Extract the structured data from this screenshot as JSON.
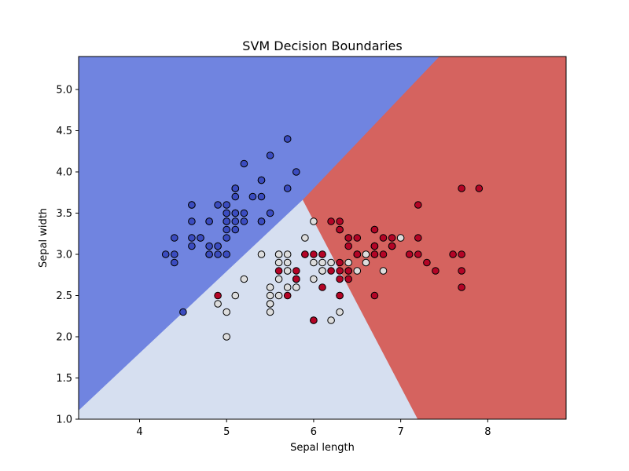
{
  "chart_data": {
    "type": "scatter",
    "title": "SVM Decision Boundaries",
    "xlabel": "Sepal length",
    "ylabel": "Sepal width",
    "xlim": [
      3.3,
      8.9
    ],
    "ylim": [
      1.0,
      5.4
    ],
    "xticks": [
      4,
      5,
      6,
      7,
      8
    ],
    "yticks": [
      1.0,
      1.5,
      2.0,
      2.5,
      3.0,
      3.5,
      4.0,
      4.5,
      5.0
    ],
    "grid": false,
    "regions": [
      {
        "class": 0,
        "color": "#7084e0",
        "polygon": [
          [
            3.3,
            5.4
          ],
          [
            7.45,
            5.4
          ],
          [
            5.88,
            3.66
          ],
          [
            3.3,
            1.1
          ]
        ]
      },
      {
        "class": 1,
        "color": "#d6dff0",
        "polygon": [
          [
            3.3,
            1.0
          ],
          [
            3.3,
            1.1
          ],
          [
            5.88,
            3.66
          ],
          [
            7.2,
            1.0
          ]
        ]
      },
      {
        "class": 2,
        "color": "#d5635f",
        "polygon": [
          [
            7.45,
            5.4
          ],
          [
            8.9,
            5.4
          ],
          [
            8.9,
            1.0
          ],
          [
            7.2,
            1.0
          ],
          [
            5.88,
            3.66
          ]
        ]
      }
    ],
    "series": [
      {
        "color": "#3b4cc0",
        "points": [
          [
            5.1,
            3.5
          ],
          [
            4.9,
            3.0
          ],
          [
            4.7,
            3.2
          ],
          [
            4.6,
            3.1
          ],
          [
            5.0,
            3.6
          ],
          [
            5.4,
            3.9
          ],
          [
            4.6,
            3.4
          ],
          [
            5.0,
            3.4
          ],
          [
            4.4,
            2.9
          ],
          [
            4.9,
            3.1
          ],
          [
            5.4,
            3.7
          ],
          [
            4.8,
            3.4
          ],
          [
            4.8,
            3.0
          ],
          [
            4.3,
            3.0
          ],
          [
            5.8,
            4.0
          ],
          [
            5.7,
            4.4
          ],
          [
            5.4,
            3.9
          ],
          [
            5.1,
            3.5
          ],
          [
            5.7,
            3.8
          ],
          [
            5.1,
            3.8
          ],
          [
            5.4,
            3.4
          ],
          [
            5.1,
            3.7
          ],
          [
            4.6,
            3.6
          ],
          [
            5.1,
            3.3
          ],
          [
            4.8,
            3.4
          ],
          [
            5.0,
            3.0
          ],
          [
            5.0,
            3.4
          ],
          [
            5.2,
            3.5
          ],
          [
            5.2,
            3.4
          ],
          [
            4.7,
            3.2
          ],
          [
            4.8,
            3.1
          ],
          [
            5.4,
            3.4
          ],
          [
            5.2,
            4.1
          ],
          [
            5.5,
            4.2
          ],
          [
            4.9,
            3.1
          ],
          [
            5.0,
            3.2
          ],
          [
            5.5,
            3.5
          ],
          [
            4.9,
            3.6
          ],
          [
            4.4,
            3.0
          ],
          [
            5.1,
            3.4
          ],
          [
            5.0,
            3.5
          ],
          [
            4.5,
            2.3
          ],
          [
            4.4,
            3.2
          ],
          [
            5.0,
            3.5
          ],
          [
            5.1,
            3.8
          ],
          [
            4.8,
            3.0
          ],
          [
            5.1,
            3.8
          ],
          [
            4.6,
            3.2
          ],
          [
            5.3,
            3.7
          ],
          [
            5.0,
            3.3
          ],
          [
            4.6,
            3.6
          ]
        ]
      },
      {
        "color": "#dddddd",
        "points": [
          [
            7.0,
            3.2
          ],
          [
            6.4,
            3.2
          ],
          [
            6.9,
            3.1
          ],
          [
            5.5,
            2.3
          ],
          [
            6.5,
            2.8
          ],
          [
            5.7,
            2.8
          ],
          [
            6.3,
            3.3
          ],
          [
            4.9,
            2.4
          ],
          [
            6.6,
            2.9
          ],
          [
            5.2,
            2.7
          ],
          [
            5.0,
            2.0
          ],
          [
            5.9,
            3.0
          ],
          [
            6.0,
            2.2
          ],
          [
            6.1,
            2.9
          ],
          [
            5.6,
            2.9
          ],
          [
            6.7,
            3.1
          ],
          [
            5.6,
            3.0
          ],
          [
            5.8,
            2.7
          ],
          [
            6.2,
            2.2
          ],
          [
            5.6,
            2.5
          ],
          [
            5.9,
            3.2
          ],
          [
            6.1,
            2.8
          ],
          [
            6.3,
            2.5
          ],
          [
            6.1,
            2.8
          ],
          [
            6.4,
            2.9
          ],
          [
            6.6,
            3.0
          ],
          [
            6.8,
            2.8
          ],
          [
            6.7,
            3.0
          ],
          [
            6.0,
            2.9
          ],
          [
            5.7,
            2.6
          ],
          [
            5.5,
            2.4
          ],
          [
            5.5,
            2.4
          ],
          [
            5.8,
            2.7
          ],
          [
            6.0,
            2.7
          ],
          [
            5.4,
            3.0
          ],
          [
            6.0,
            3.4
          ],
          [
            6.7,
            3.1
          ],
          [
            6.3,
            2.3
          ],
          [
            5.6,
            3.0
          ],
          [
            5.5,
            2.5
          ],
          [
            5.5,
            2.6
          ],
          [
            6.1,
            3.0
          ],
          [
            5.8,
            2.6
          ],
          [
            5.0,
            2.3
          ],
          [
            5.6,
            2.7
          ],
          [
            5.7,
            3.0
          ],
          [
            5.7,
            2.9
          ],
          [
            6.2,
            2.9
          ],
          [
            5.1,
            2.5
          ],
          [
            5.7,
            2.8
          ]
        ]
      },
      {
        "color": "#b40426",
        "points": [
          [
            6.3,
            3.3
          ],
          [
            5.8,
            2.7
          ],
          [
            7.1,
            3.0
          ],
          [
            6.3,
            2.9
          ],
          [
            6.5,
            3.0
          ],
          [
            7.6,
            3.0
          ],
          [
            4.9,
            2.5
          ],
          [
            7.3,
            2.9
          ],
          [
            6.7,
            2.5
          ],
          [
            7.2,
            3.6
          ],
          [
            6.5,
            3.2
          ],
          [
            6.4,
            2.7
          ],
          [
            6.8,
            3.0
          ],
          [
            5.7,
            2.5
          ],
          [
            5.8,
            2.8
          ],
          [
            6.4,
            3.2
          ],
          [
            6.5,
            3.0
          ],
          [
            7.7,
            3.8
          ],
          [
            7.7,
            2.6
          ],
          [
            6.0,
            2.2
          ],
          [
            6.9,
            3.2
          ],
          [
            5.6,
            2.8
          ],
          [
            7.7,
            2.8
          ],
          [
            6.3,
            2.7
          ],
          [
            6.7,
            3.3
          ],
          [
            7.2,
            3.2
          ],
          [
            6.2,
            2.8
          ],
          [
            6.1,
            3.0
          ],
          [
            6.4,
            2.8
          ],
          [
            7.2,
            3.0
          ],
          [
            7.4,
            2.8
          ],
          [
            7.9,
            3.8
          ],
          [
            6.4,
            2.8
          ],
          [
            6.3,
            2.8
          ],
          [
            6.1,
            2.6
          ],
          [
            7.7,
            3.0
          ],
          [
            6.3,
            3.4
          ],
          [
            6.4,
            3.1
          ],
          [
            6.0,
            3.0
          ],
          [
            6.9,
            3.1
          ],
          [
            6.7,
            3.1
          ],
          [
            6.9,
            3.1
          ],
          [
            5.8,
            2.7
          ],
          [
            6.8,
            3.2
          ],
          [
            6.7,
            3.3
          ],
          [
            6.7,
            3.0
          ],
          [
            6.3,
            2.5
          ],
          [
            6.5,
            3.0
          ],
          [
            6.2,
            3.4
          ],
          [
            5.9,
            3.0
          ]
        ]
      }
    ]
  }
}
